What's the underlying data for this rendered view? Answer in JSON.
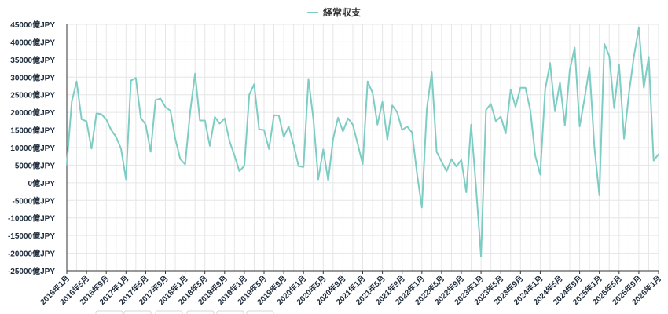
{
  "chart_data": {
    "type": "line",
    "title": "",
    "xlabel": "",
    "ylabel": "",
    "legend_position": "top-center",
    "grid": true,
    "ylim": [
      -25000,
      45000
    ],
    "y_ticks": [
      45000,
      40000,
      35000,
      30000,
      25000,
      20000,
      15000,
      10000,
      5000,
      0,
      -5000,
      -10000,
      -15000,
      -20000,
      -25000
    ],
    "y_tick_suffix": "億JPY",
    "x_start": "2016年1月",
    "x_tick_labels": [
      "2016年1月",
      "2016年5月",
      "2016年9月",
      "2017年1月",
      "2017年5月",
      "2017年9月",
      "2018年1月",
      "2018年5月",
      "2018年9月",
      "2019年1月",
      "2019年5月",
      "2019年9月",
      "2020年1月",
      "2020年5月",
      "2020年9月",
      "2021年1月",
      "2021年5月",
      "2021年9月",
      "2022年1月",
      "2022年5月",
      "2022年9月",
      "2023年1月",
      "2023年5月",
      "2023年9月",
      "2024年1月",
      "2024年5月",
      "2024年9月",
      "2025年1月",
      "2025年5月",
      "2025年9月",
      "2026年1月"
    ],
    "x_tick_every": 4,
    "series": [
      {
        "name": "経常収支",
        "color": "#7ecdc4",
        "values": [
          5200,
          23000,
          28800,
          18000,
          17500,
          9700,
          19700,
          19500,
          18000,
          15000,
          13000,
          9700,
          1000,
          29000,
          29800,
          18500,
          16500,
          8800,
          23500,
          23900,
          21500,
          20500,
          12500,
          6800,
          5200,
          20000,
          31000,
          17700,
          17700,
          10500,
          18700,
          16800,
          18300,
          11800,
          7700,
          3300,
          4800,
          25000,
          28000,
          15200,
          15000,
          9600,
          19200,
          19100,
          13000,
          16000,
          10800,
          4700,
          4500,
          29500,
          18000,
          1000,
          9500,
          600,
          12500,
          18500,
          14600,
          18300,
          16500,
          11000,
          5300,
          28800,
          25500,
          16500,
          23000,
          12300,
          22000,
          20000,
          15000,
          16000,
          14300,
          2800,
          -7000,
          21000,
          31400,
          8800,
          6000,
          3300,
          6700,
          4600,
          6500,
          -2700,
          16500,
          -1500,
          -21000,
          20700,
          22400,
          17500,
          18800,
          14000,
          26500,
          21600,
          27000,
          27000,
          20500,
          7700,
          2300,
          26500,
          34000,
          20300,
          28500,
          16300,
          32000,
          38400,
          16000,
          24000,
          32800,
          10000,
          -3600,
          39500,
          36000,
          21200,
          33600,
          12500,
          25500,
          35800,
          44000,
          27000,
          35800,
          6300,
          8100
        ]
      }
    ]
  }
}
